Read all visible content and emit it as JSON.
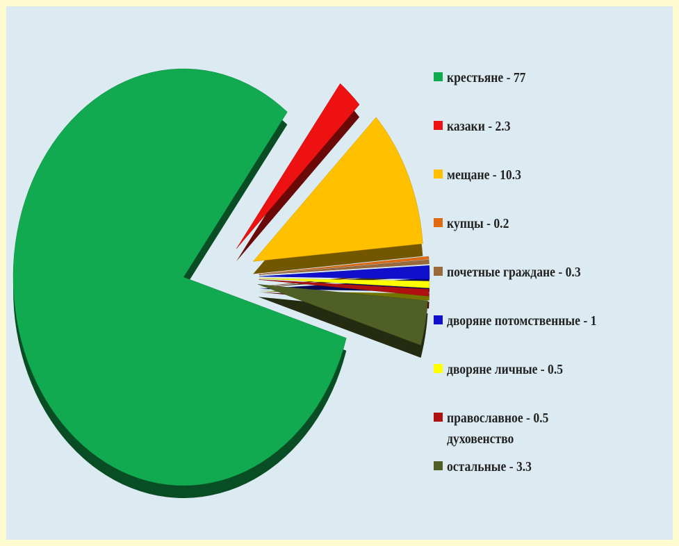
{
  "chart_data": {
    "type": "pie",
    "title": "",
    "slices": [
      {
        "label": "крестьяне",
        "value": 77,
        "color": "#11aa50",
        "legend_text": "крестьяне  - 77"
      },
      {
        "label": "казаки",
        "value": 2.3,
        "color": "#ee1111",
        "legend_text": "казаки - 2.3"
      },
      {
        "label": "мещане",
        "value": 10.3,
        "color": "#ffc000",
        "legend_text": "мещане - 10.3"
      },
      {
        "label": "купцы",
        "value": 0.2,
        "color": "#e06a10",
        "legend_text": "купцы - 0.2"
      },
      {
        "label": "почетные граждане",
        "value": 0.3,
        "color": "#9a6a3a",
        "legend_text": "почетные граждане - 0.3"
      },
      {
        "label": "дворяне потомственные",
        "value": 1,
        "color": "#1010cc",
        "legend_text": "дворяне потомственные - 1"
      },
      {
        "label": "дворяне личные",
        "value": 0.5,
        "color": "#ffff00",
        "legend_text": "дворяне личные - 0.5"
      },
      {
        "label": "православное духовенство",
        "value": 0.5,
        "color": "#b01010",
        "legend_text": "православное - 0.5\nдуховенство"
      },
      {
        "label": "остальные",
        "value": 3.3,
        "color": "#4f5f25",
        "legend_text": "остальные  - 3.3"
      }
    ],
    "legend_position": "right",
    "style": "3d exploded"
  }
}
